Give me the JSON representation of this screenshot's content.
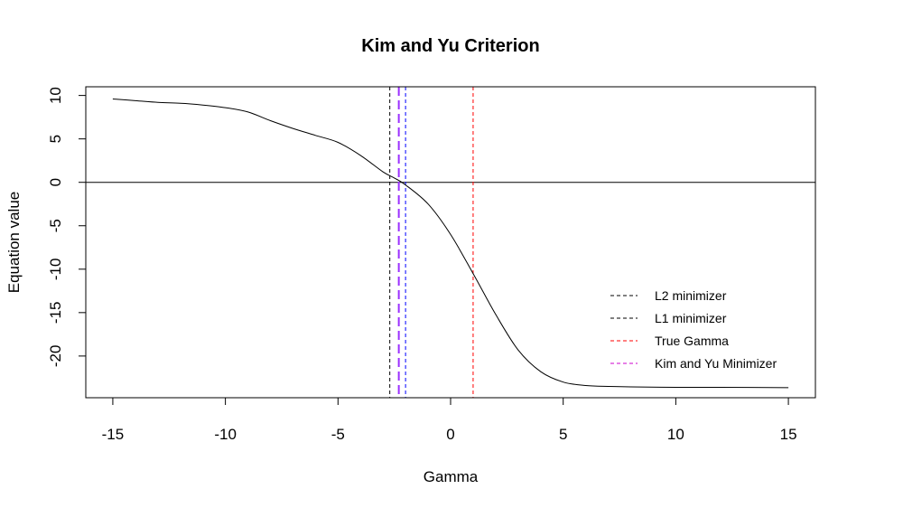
{
  "chart_data": {
    "type": "line",
    "title": "Kim and Yu Criterion",
    "xlabel": "Gamma",
    "ylabel": "Equation value",
    "xlim": [
      -16.2,
      16.2
    ],
    "ylim": [
      -24.8,
      11.0
    ],
    "xticks": [
      -15,
      -10,
      -5,
      0,
      5,
      10,
      15
    ],
    "yticks": [
      -20,
      -15,
      -10,
      -5,
      0,
      5,
      10
    ],
    "xtick_labels": [
      "-15",
      "-10",
      "-5",
      "0",
      "5",
      "10",
      "15"
    ],
    "ytick_labels": [
      "-20",
      "-15",
      "-10",
      "-5",
      "0",
      "5",
      "10"
    ],
    "grid": false,
    "legend_position": "bottom-right",
    "series": [
      {
        "color": "#000000",
        "x": [
          -15,
          -14,
          -13,
          -12,
          -11,
          -10,
          -9,
          -8,
          -7,
          -6,
          -5,
          -4,
          -3,
          -2.5,
          -2,
          -1,
          0,
          1,
          2,
          3,
          4,
          5,
          6,
          7,
          8,
          10,
          12,
          15
        ],
        "y": [
          9.6,
          9.4,
          9.2,
          9.1,
          8.9,
          8.6,
          8.1,
          7.1,
          6.2,
          5.4,
          4.6,
          3.1,
          1.2,
          0.5,
          -0.3,
          -2.5,
          -6.0,
          -10.5,
          -15.2,
          -19.3,
          -21.8,
          -23.0,
          -23.4,
          -23.5,
          -23.55,
          -23.6,
          -23.6,
          -23.65
        ]
      }
    ],
    "hlines": [
      {
        "y": 0,
        "color": "#000000",
        "style": "solid"
      }
    ],
    "vlines": [
      {
        "x": -2.7,
        "color": "#000000",
        "style": "dashed"
      },
      {
        "x": -2.3,
        "color": "#9b30ff",
        "style": "long-dashed"
      },
      {
        "x": -2.0,
        "color": "#0000ff",
        "style": "dashed"
      },
      {
        "x": 1.0,
        "color": "#ff0000",
        "style": "dashed"
      }
    ],
    "legend": [
      {
        "label": "L2 minimizer",
        "color": "#000000"
      },
      {
        "label": "L1 minimizer",
        "color": "#000000"
      },
      {
        "label": "True Gamma",
        "color": "#ff0000"
      },
      {
        "label": "Kim and Yu Minimizer",
        "color": "#cc00cc"
      }
    ]
  }
}
